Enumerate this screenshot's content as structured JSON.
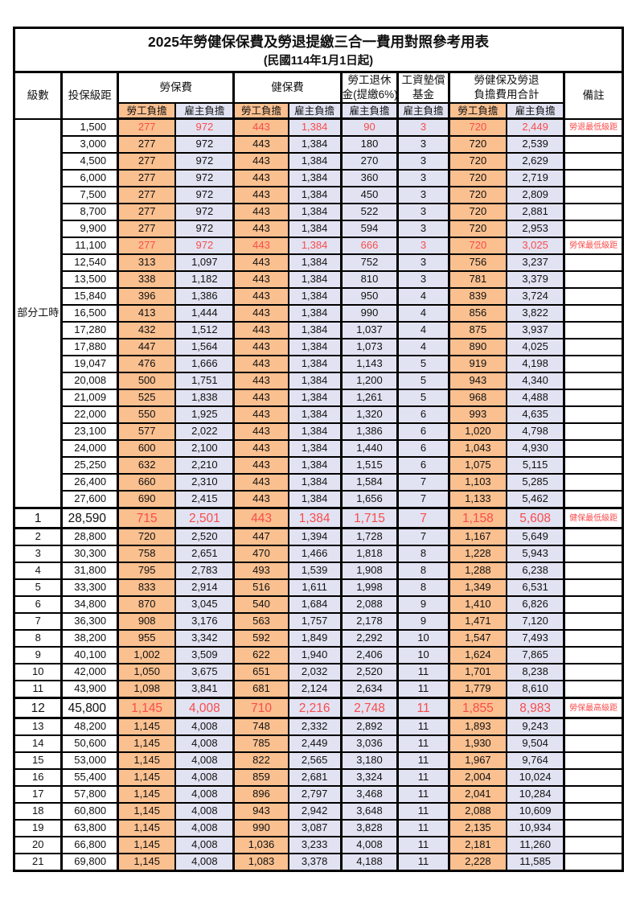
{
  "title": "2025年勞健保保費及勞退提繳三合一費用對照參考用表",
  "subtitle": "(民國114年1月1日起)",
  "header": {
    "level": "級數",
    "salary_bracket": "投保級距",
    "labor_insurance": "勞保費",
    "health_insurance": "健保費",
    "pension_line1": "勞工退休",
    "pension_line2": "金(提繳6%)",
    "wage_fund_line1": "工資墊償",
    "wage_fund_line2": "基金",
    "total_line1": "勞健保及勞退",
    "total_line2": "負擔費用合計",
    "remarks": "備註",
    "employee": "勞工負擔",
    "employer": "雇主負擔"
  },
  "part_time_label": "部分工時",
  "colors": {
    "employee_bg": "#FAC090",
    "employer_bg": "#E1E3F2",
    "highlight_red": "#FB4B4B"
  },
  "rows": [
    {
      "level": "",
      "salary": "1,500",
      "li_emp": "277",
      "li_er": "972",
      "hi_emp": "443",
      "hi_er": "1,384",
      "pension": "90",
      "fund": "3",
      "tot_emp": "720",
      "tot_er": "2,449",
      "note": "勞退最低級距",
      "red": true,
      "big": false
    },
    {
      "level": "",
      "salary": "3,000",
      "li_emp": "277",
      "li_er": "972",
      "hi_emp": "443",
      "hi_er": "1,384",
      "pension": "180",
      "fund": "3",
      "tot_emp": "720",
      "tot_er": "2,539",
      "note": "",
      "red": false,
      "big": false
    },
    {
      "level": "",
      "salary": "4,500",
      "li_emp": "277",
      "li_er": "972",
      "hi_emp": "443",
      "hi_er": "1,384",
      "pension": "270",
      "fund": "3",
      "tot_emp": "720",
      "tot_er": "2,629",
      "note": "",
      "red": false,
      "big": false
    },
    {
      "level": "",
      "salary": "6,000",
      "li_emp": "277",
      "li_er": "972",
      "hi_emp": "443",
      "hi_er": "1,384",
      "pension": "360",
      "fund": "3",
      "tot_emp": "720",
      "tot_er": "2,719",
      "note": "",
      "red": false,
      "big": false
    },
    {
      "level": "",
      "salary": "7,500",
      "li_emp": "277",
      "li_er": "972",
      "hi_emp": "443",
      "hi_er": "1,384",
      "pension": "450",
      "fund": "3",
      "tot_emp": "720",
      "tot_er": "2,809",
      "note": "",
      "red": false,
      "big": false
    },
    {
      "level": "",
      "salary": "8,700",
      "li_emp": "277",
      "li_er": "972",
      "hi_emp": "443",
      "hi_er": "1,384",
      "pension": "522",
      "fund": "3",
      "tot_emp": "720",
      "tot_er": "2,881",
      "note": "",
      "red": false,
      "big": false
    },
    {
      "level": "",
      "salary": "9,900",
      "li_emp": "277",
      "li_er": "972",
      "hi_emp": "443",
      "hi_er": "1,384",
      "pension": "594",
      "fund": "3",
      "tot_emp": "720",
      "tot_er": "2,953",
      "note": "",
      "red": false,
      "big": false
    },
    {
      "level": "",
      "salary": "11,100",
      "li_emp": "277",
      "li_er": "972",
      "hi_emp": "443",
      "hi_er": "1,384",
      "pension": "666",
      "fund": "3",
      "tot_emp": "720",
      "tot_er": "3,025",
      "note": "勞保最低級距",
      "red": true,
      "big": false
    },
    {
      "level": "",
      "salary": "12,540",
      "li_emp": "313",
      "li_er": "1,097",
      "hi_emp": "443",
      "hi_er": "1,384",
      "pension": "752",
      "fund": "3",
      "tot_emp": "756",
      "tot_er": "3,237",
      "note": "",
      "red": false,
      "big": false
    },
    {
      "level": "",
      "salary": "13,500",
      "li_emp": "338",
      "li_er": "1,182",
      "hi_emp": "443",
      "hi_er": "1,384",
      "pension": "810",
      "fund": "3",
      "tot_emp": "781",
      "tot_er": "3,379",
      "note": "",
      "red": false,
      "big": false
    },
    {
      "level": "",
      "salary": "15,840",
      "li_emp": "396",
      "li_er": "1,386",
      "hi_emp": "443",
      "hi_er": "1,384",
      "pension": "950",
      "fund": "4",
      "tot_emp": "839",
      "tot_er": "3,724",
      "note": "",
      "red": false,
      "big": false
    },
    {
      "level": "",
      "salary": "16,500",
      "li_emp": "413",
      "li_er": "1,444",
      "hi_emp": "443",
      "hi_er": "1,384",
      "pension": "990",
      "fund": "4",
      "tot_emp": "856",
      "tot_er": "3,822",
      "note": "",
      "red": false,
      "big": false
    },
    {
      "level": "",
      "salary": "17,280",
      "li_emp": "432",
      "li_er": "1,512",
      "hi_emp": "443",
      "hi_er": "1,384",
      "pension": "1,037",
      "fund": "4",
      "tot_emp": "875",
      "tot_er": "3,937",
      "note": "",
      "red": false,
      "big": false
    },
    {
      "level": "",
      "salary": "17,880",
      "li_emp": "447",
      "li_er": "1,564",
      "hi_emp": "443",
      "hi_er": "1,384",
      "pension": "1,073",
      "fund": "4",
      "tot_emp": "890",
      "tot_er": "4,025",
      "note": "",
      "red": false,
      "big": false
    },
    {
      "level": "",
      "salary": "19,047",
      "li_emp": "476",
      "li_er": "1,666",
      "hi_emp": "443",
      "hi_er": "1,384",
      "pension": "1,143",
      "fund": "5",
      "tot_emp": "919",
      "tot_er": "4,198",
      "note": "",
      "red": false,
      "big": false
    },
    {
      "level": "",
      "salary": "20,008",
      "li_emp": "500",
      "li_er": "1,751",
      "hi_emp": "443",
      "hi_er": "1,384",
      "pension": "1,200",
      "fund": "5",
      "tot_emp": "943",
      "tot_er": "4,340",
      "note": "",
      "red": false,
      "big": false
    },
    {
      "level": "",
      "salary": "21,009",
      "li_emp": "525",
      "li_er": "1,838",
      "hi_emp": "443",
      "hi_er": "1,384",
      "pension": "1,261",
      "fund": "5",
      "tot_emp": "968",
      "tot_er": "4,488",
      "note": "",
      "red": false,
      "big": false
    },
    {
      "level": "",
      "salary": "22,000",
      "li_emp": "550",
      "li_er": "1,925",
      "hi_emp": "443",
      "hi_er": "1,384",
      "pension": "1,320",
      "fund": "6",
      "tot_emp": "993",
      "tot_er": "4,635",
      "note": "",
      "red": false,
      "big": false
    },
    {
      "level": "",
      "salary": "23,100",
      "li_emp": "577",
      "li_er": "2,022",
      "hi_emp": "443",
      "hi_er": "1,384",
      "pension": "1,386",
      "fund": "6",
      "tot_emp": "1,020",
      "tot_er": "4,798",
      "note": "",
      "red": false,
      "big": false
    },
    {
      "level": "",
      "salary": "24,000",
      "li_emp": "600",
      "li_er": "2,100",
      "hi_emp": "443",
      "hi_er": "1,384",
      "pension": "1,440",
      "fund": "6",
      "tot_emp": "1,043",
      "tot_er": "4,930",
      "note": "",
      "red": false,
      "big": false
    },
    {
      "level": "",
      "salary": "25,250",
      "li_emp": "632",
      "li_er": "2,210",
      "hi_emp": "443",
      "hi_er": "1,384",
      "pension": "1,515",
      "fund": "6",
      "tot_emp": "1,075",
      "tot_er": "5,115",
      "note": "",
      "red": false,
      "big": false
    },
    {
      "level": "",
      "salary": "26,400",
      "li_emp": "660",
      "li_er": "2,310",
      "hi_emp": "443",
      "hi_er": "1,384",
      "pension": "1,584",
      "fund": "7",
      "tot_emp": "1,103",
      "tot_er": "5,285",
      "note": "",
      "red": false,
      "big": false
    },
    {
      "level": "",
      "salary": "27,600",
      "li_emp": "690",
      "li_er": "2,415",
      "hi_emp": "443",
      "hi_er": "1,384",
      "pension": "1,656",
      "fund": "7",
      "tot_emp": "1,133",
      "tot_er": "5,462",
      "note": "",
      "red": false,
      "big": false
    },
    {
      "level": "1",
      "salary": "28,590",
      "li_emp": "715",
      "li_er": "2,501",
      "hi_emp": "443",
      "hi_er": "1,384",
      "pension": "1,715",
      "fund": "7",
      "tot_emp": "1,158",
      "tot_er": "5,608",
      "note": "健保最低級距",
      "red": true,
      "big": true
    },
    {
      "level": "2",
      "salary": "28,800",
      "li_emp": "720",
      "li_er": "2,520",
      "hi_emp": "447",
      "hi_er": "1,394",
      "pension": "1,728",
      "fund": "7",
      "tot_emp": "1,167",
      "tot_er": "5,649",
      "note": "",
      "red": false,
      "big": false
    },
    {
      "level": "3",
      "salary": "30,300",
      "li_emp": "758",
      "li_er": "2,651",
      "hi_emp": "470",
      "hi_er": "1,466",
      "pension": "1,818",
      "fund": "8",
      "tot_emp": "1,228",
      "tot_er": "5,943",
      "note": "",
      "red": false,
      "big": false
    },
    {
      "level": "4",
      "salary": "31,800",
      "li_emp": "795",
      "li_er": "2,783",
      "hi_emp": "493",
      "hi_er": "1,539",
      "pension": "1,908",
      "fund": "8",
      "tot_emp": "1,288",
      "tot_er": "6,238",
      "note": "",
      "red": false,
      "big": false
    },
    {
      "level": "5",
      "salary": "33,300",
      "li_emp": "833",
      "li_er": "2,914",
      "hi_emp": "516",
      "hi_er": "1,611",
      "pension": "1,998",
      "fund": "8",
      "tot_emp": "1,349",
      "tot_er": "6,531",
      "note": "",
      "red": false,
      "big": false
    },
    {
      "level": "6",
      "salary": "34,800",
      "li_emp": "870",
      "li_er": "3,045",
      "hi_emp": "540",
      "hi_er": "1,684",
      "pension": "2,088",
      "fund": "9",
      "tot_emp": "1,410",
      "tot_er": "6,826",
      "note": "",
      "red": false,
      "big": false
    },
    {
      "level": "7",
      "salary": "36,300",
      "li_emp": "908",
      "li_er": "3,176",
      "hi_emp": "563",
      "hi_er": "1,757",
      "pension": "2,178",
      "fund": "9",
      "tot_emp": "1,471",
      "tot_er": "7,120",
      "note": "",
      "red": false,
      "big": false
    },
    {
      "level": "8",
      "salary": "38,200",
      "li_emp": "955",
      "li_er": "3,342",
      "hi_emp": "592",
      "hi_er": "1,849",
      "pension": "2,292",
      "fund": "10",
      "tot_emp": "1,547",
      "tot_er": "7,493",
      "note": "",
      "red": false,
      "big": false
    },
    {
      "level": "9",
      "salary": "40,100",
      "li_emp": "1,002",
      "li_er": "3,509",
      "hi_emp": "622",
      "hi_er": "1,940",
      "pension": "2,406",
      "fund": "10",
      "tot_emp": "1,624",
      "tot_er": "7,865",
      "note": "",
      "red": false,
      "big": false
    },
    {
      "level": "10",
      "salary": "42,000",
      "li_emp": "1,050",
      "li_er": "3,675",
      "hi_emp": "651",
      "hi_er": "2,032",
      "pension": "2,520",
      "fund": "11",
      "tot_emp": "1,701",
      "tot_er": "8,238",
      "note": "",
      "red": false,
      "big": false
    },
    {
      "level": "11",
      "salary": "43,900",
      "li_emp": "1,098",
      "li_er": "3,841",
      "hi_emp": "681",
      "hi_er": "2,124",
      "pension": "2,634",
      "fund": "11",
      "tot_emp": "1,779",
      "tot_er": "8,610",
      "note": "",
      "red": false,
      "big": false
    },
    {
      "level": "12",
      "salary": "45,800",
      "li_emp": "1,145",
      "li_er": "4,008",
      "hi_emp": "710",
      "hi_er": "2,216",
      "pension": "2,748",
      "fund": "11",
      "tot_emp": "1,855",
      "tot_er": "8,983",
      "note": "勞保最高級距",
      "red": true,
      "big": true
    },
    {
      "level": "13",
      "salary": "48,200",
      "li_emp": "1,145",
      "li_er": "4,008",
      "hi_emp": "748",
      "hi_er": "2,332",
      "pension": "2,892",
      "fund": "11",
      "tot_emp": "1,893",
      "tot_er": "9,243",
      "note": "",
      "red": false,
      "big": false
    },
    {
      "level": "14",
      "salary": "50,600",
      "li_emp": "1,145",
      "li_er": "4,008",
      "hi_emp": "785",
      "hi_er": "2,449",
      "pension": "3,036",
      "fund": "11",
      "tot_emp": "1,930",
      "tot_er": "9,504",
      "note": "",
      "red": false,
      "big": false
    },
    {
      "level": "15",
      "salary": "53,000",
      "li_emp": "1,145",
      "li_er": "4,008",
      "hi_emp": "822",
      "hi_er": "2,565",
      "pension": "3,180",
      "fund": "11",
      "tot_emp": "1,967",
      "tot_er": "9,764",
      "note": "",
      "red": false,
      "big": false
    },
    {
      "level": "16",
      "salary": "55,400",
      "li_emp": "1,145",
      "li_er": "4,008",
      "hi_emp": "859",
      "hi_er": "2,681",
      "pension": "3,324",
      "fund": "11",
      "tot_emp": "2,004",
      "tot_er": "10,024",
      "note": "",
      "red": false,
      "big": false
    },
    {
      "level": "17",
      "salary": "57,800",
      "li_emp": "1,145",
      "li_er": "4,008",
      "hi_emp": "896",
      "hi_er": "2,797",
      "pension": "3,468",
      "fund": "11",
      "tot_emp": "2,041",
      "tot_er": "10,284",
      "note": "",
      "red": false,
      "big": false
    },
    {
      "level": "18",
      "salary": "60,800",
      "li_emp": "1,145",
      "li_er": "4,008",
      "hi_emp": "943",
      "hi_er": "2,942",
      "pension": "3,648",
      "fund": "11",
      "tot_emp": "2,088",
      "tot_er": "10,609",
      "note": "",
      "red": false,
      "big": false
    },
    {
      "level": "19",
      "salary": "63,800",
      "li_emp": "1,145",
      "li_er": "4,008",
      "hi_emp": "990",
      "hi_er": "3,087",
      "pension": "3,828",
      "fund": "11",
      "tot_emp": "2,135",
      "tot_er": "10,934",
      "note": "",
      "red": false,
      "big": false
    },
    {
      "level": "20",
      "salary": "66,800",
      "li_emp": "1,145",
      "li_er": "4,008",
      "hi_emp": "1,036",
      "hi_er": "3,233",
      "pension": "4,008",
      "fund": "11",
      "tot_emp": "2,181",
      "tot_er": "11,260",
      "note": "",
      "red": false,
      "big": false
    },
    {
      "level": "21",
      "salary": "69,800",
      "li_emp": "1,145",
      "li_er": "4,008",
      "hi_emp": "1,083",
      "hi_er": "3,378",
      "pension": "4,188",
      "fund": "11",
      "tot_emp": "2,228",
      "tot_er": "11,585",
      "note": "",
      "red": false,
      "big": false
    }
  ]
}
